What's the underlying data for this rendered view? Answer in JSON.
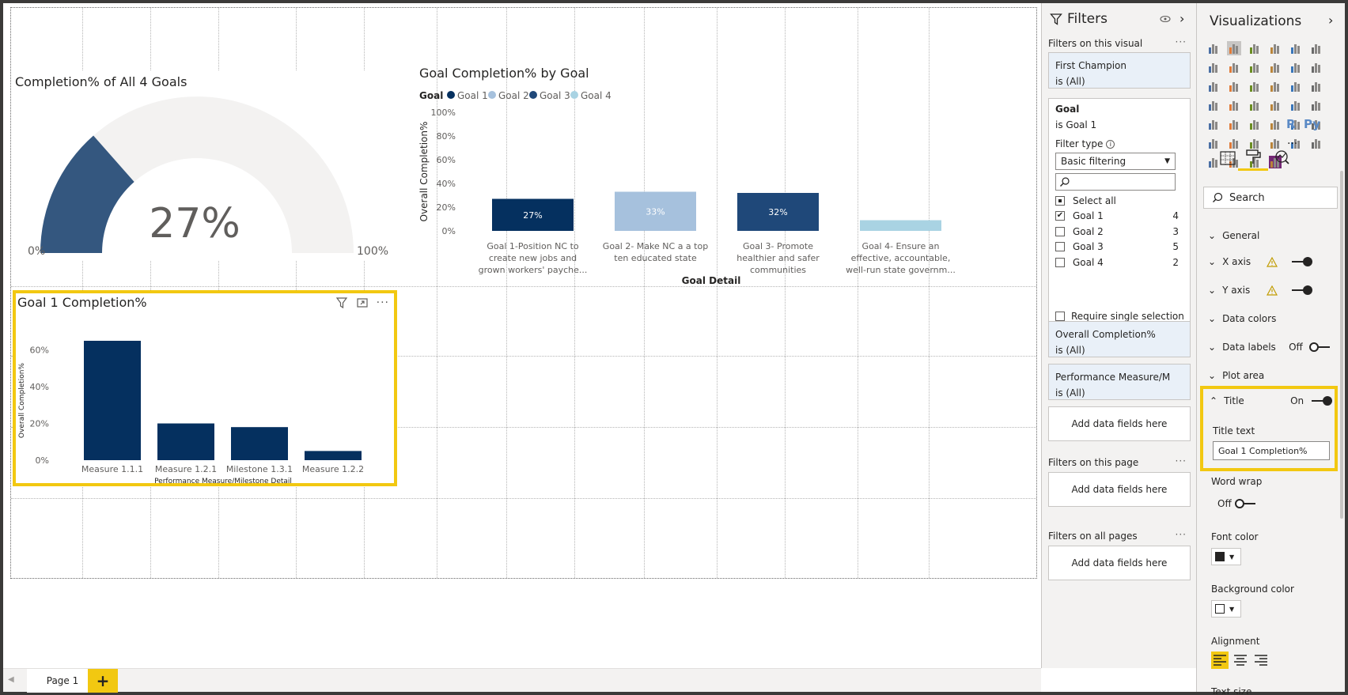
{
  "gauge": {
    "title": "Completion% of All 4 Goals",
    "value_label": "27%",
    "value": 0.27,
    "min_label": "0%",
    "max_label": "100%",
    "fill_color": "#34577f",
    "track_color": "#f3f2f1"
  },
  "goal_chart": {
    "title": "Goal Completion% by Goal",
    "legend_title": "Goal",
    "legend": [
      {
        "label": "Goal 1",
        "color": "#05305f"
      },
      {
        "label": "Goal 2",
        "color": "#a6c1dd"
      },
      {
        "label": "Goal 3",
        "color": "#1f4879"
      },
      {
        "label": "Goal 4",
        "color": "#a9d3e3"
      }
    ],
    "ylabel": "Overall Completion%",
    "xlabel": "Goal Detail",
    "yticks": [
      "100%",
      "80%",
      "60%",
      "40%",
      "20%",
      "0%"
    ],
    "categories": [
      [
        "Goal 1-Position NC to",
        "create new jobs and",
        "grown workers' payche..."
      ],
      [
        "Goal 2- Make NC a a top",
        "ten educated state"
      ],
      [
        "Goal 3- Promote",
        "healthier and safer",
        "communities"
      ],
      [
        "Goal 4- Ensure an",
        "effective, accountable,",
        "well-run state governm..."
      ]
    ],
    "data_labels": [
      "27%",
      "33%",
      "32%",
      ""
    ]
  },
  "goal1_chart": {
    "title": "Goal 1 Completion%",
    "ylabel": "Overall Completion%",
    "xlabel": "Performance Measure/Milestone Detail",
    "yticks": [
      "60%",
      "40%",
      "20%",
      "0%"
    ],
    "categories": [
      "Measure 1.1.1",
      "Measure 1.2.1",
      "Milestone 1.3.1",
      "Measure 1.2.2"
    ],
    "bar_color": "#05305f"
  },
  "chart_data": [
    {
      "type": "bar",
      "title": "Goal Completion% by Goal",
      "xlabel": "Goal Detail",
      "ylabel": "Overall Completion%",
      "categories": [
        "Goal 1-Position NC to create new jobs and grown workers' payche...",
        "Goal 2- Make NC a a top ten educated state",
        "Goal 3- Promote healthier and safer communities",
        "Goal 4- Ensure an effective, accountable, well-run state governm..."
      ],
      "values": [
        27,
        33,
        32,
        9
      ],
      "colors": [
        "#05305f",
        "#a6c1dd",
        "#1f4879",
        "#a9d3e3"
      ],
      "ylim": [
        0,
        100
      ],
      "legend": "top-left"
    },
    {
      "type": "bar",
      "title": "Goal 1 Completion%",
      "xlabel": "Performance Measure/Milestone Detail",
      "ylabel": "Overall Completion%",
      "categories": [
        "Measure 1.1.1",
        "Measure 1.2.1",
        "Milestone 1.3.1",
        "Measure 1.2.2"
      ],
      "values": [
        65,
        20,
        18,
        5
      ],
      "ylim": [
        0,
        70
      ]
    }
  ],
  "pages": {
    "tab_label": "Page 1",
    "add_label": "+"
  },
  "filters": {
    "title": "Filters",
    "on_visual_label": "Filters on this visual",
    "dots": "···",
    "first_champion": {
      "name": "First Champion",
      "state": "is (All)"
    },
    "goal": {
      "name": "Goal",
      "state": "is Goal 1",
      "filter_type_label": "Filter type",
      "filter_type_value": "Basic filtering",
      "select_all": "Select all",
      "items": [
        {
          "label": "Goal 1",
          "count": "4",
          "checked": true
        },
        {
          "label": "Goal 2",
          "count": "3",
          "checked": false
        },
        {
          "label": "Goal 3",
          "count": "5",
          "checked": false
        },
        {
          "label": "Goal 4",
          "count": "2",
          "checked": false
        }
      ],
      "require_single": "Require single selection"
    },
    "overall": {
      "name": "Overall Completion%",
      "state": "is (All)"
    },
    "perf": {
      "name": "Performance Measure/M",
      "state": "is (All)"
    },
    "add_fields": "Add data fields here",
    "on_page_label": "Filters on this page",
    "on_all_label": "Filters on all pages"
  },
  "viz": {
    "title": "Visualizations",
    "search_placeholder": "Search",
    "more": "···",
    "r_label": "R",
    "py_label": "Py",
    "sections": {
      "general": "General",
      "xaxis": "X axis",
      "yaxis": "Y axis",
      "data_colors": "Data colors",
      "data_labels": "Data labels",
      "data_labels_state": "Off",
      "plot_area": "Plot area",
      "title": "Title",
      "title_state": "On",
      "title_text_label": "Title text",
      "title_text_value": "Goal 1 Completion%",
      "word_wrap": "Word wrap",
      "word_wrap_state": "Off",
      "font_color": "Font color",
      "background_color": "Background color",
      "alignment": "Alignment",
      "text_size": "Text size"
    }
  }
}
